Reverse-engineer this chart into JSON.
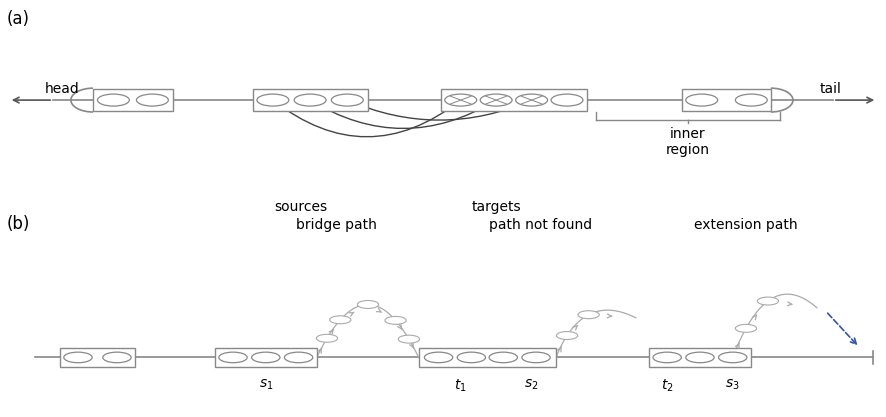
{
  "fig_width": 8.86,
  "fig_height": 4.17,
  "bg_color": "#ffffff",
  "gray": "#888888",
  "dark": "#555555",
  "blue": "#3355aa",
  "panel_a_label": "(a)",
  "panel_b_label": "(b)",
  "label_head": "head",
  "label_tail": "tail",
  "label_sources": "sources",
  "label_targets": "targets",
  "label_inner": "inner\nregion",
  "label_bridge": "bridge path",
  "label_notfound": "path not found",
  "label_extension": "extension path"
}
